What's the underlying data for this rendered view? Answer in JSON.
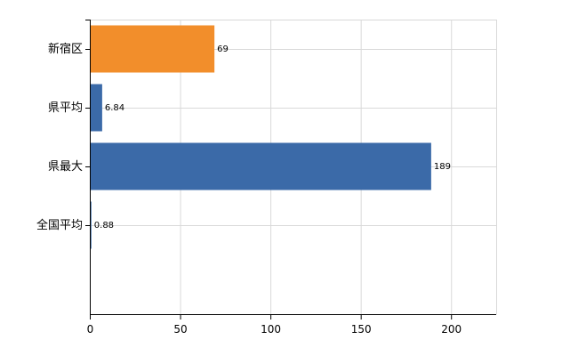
{
  "chart_data": {
    "type": "bar",
    "orientation": "horizontal",
    "categories": [
      "新宿区",
      "県平均",
      "県最大",
      "全国平均"
    ],
    "values": [
      69,
      6.84,
      189,
      0.88
    ],
    "value_labels": [
      "69",
      "6.84",
      "189",
      "0.88"
    ],
    "bar_colors": [
      "#f28e2b",
      "#3b6aa8",
      "#3b6aa8",
      "#3b6aa8"
    ],
    "xlim": [
      0,
      225
    ],
    "xticks": [
      0,
      50,
      100,
      150,
      200
    ],
    "xtick_labels": [
      "0",
      "50",
      "100",
      "150",
      "200"
    ],
    "grid": true,
    "title": "",
    "xlabel": "",
    "ylabel": ""
  }
}
